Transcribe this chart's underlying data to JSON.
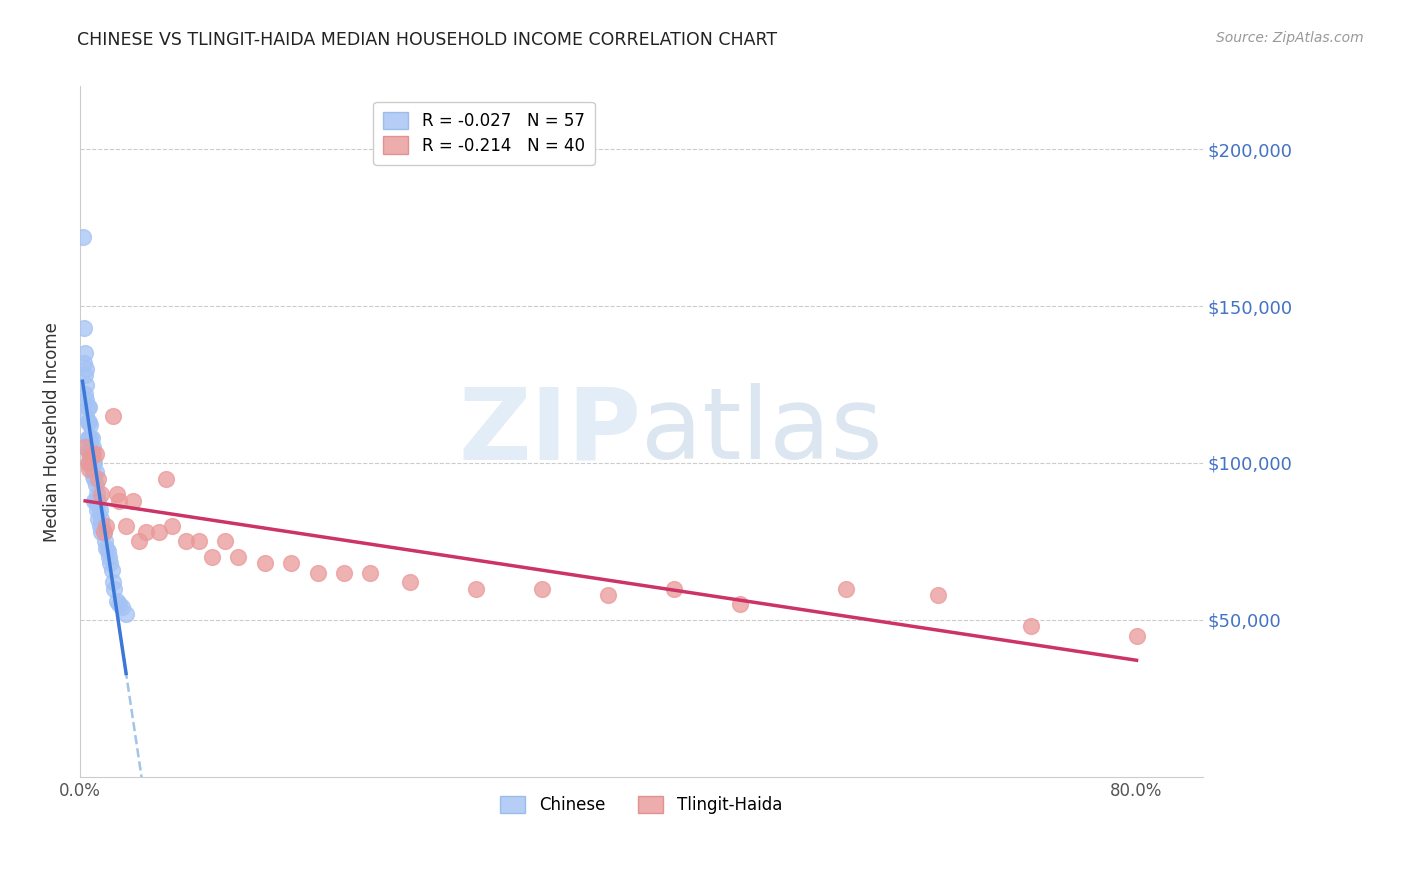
{
  "title": "CHINESE VS TLINGIT-HAIDA MEDIAN HOUSEHOLD INCOME CORRELATION CHART",
  "source": "Source: ZipAtlas.com",
  "ylabel": "Median Household Income",
  "ytick_labels": [
    "$50,000",
    "$100,000",
    "$150,000",
    "$200,000"
  ],
  "ytick_values": [
    50000,
    100000,
    150000,
    200000
  ],
  "ylim": [
    0,
    220000
  ],
  "xlim": [
    0.0,
    0.85
  ],
  "chinese_R": -0.027,
  "chinese_N": 57,
  "tlingit_R": -0.214,
  "tlingit_N": 40,
  "chinese_color": "#a4c2f4",
  "tlingit_color": "#ea9999",
  "chinese_line_color": "#3c78d8",
  "tlingit_line_color": "#cc3366",
  "chinese_dash_color": "#9fc5e8",
  "chinese_x": [
    0.002,
    0.003,
    0.003,
    0.004,
    0.004,
    0.004,
    0.005,
    0.005,
    0.005,
    0.005,
    0.006,
    0.006,
    0.006,
    0.006,
    0.007,
    0.007,
    0.007,
    0.007,
    0.007,
    0.008,
    0.008,
    0.008,
    0.008,
    0.009,
    0.009,
    0.009,
    0.01,
    0.01,
    0.01,
    0.011,
    0.011,
    0.011,
    0.012,
    0.012,
    0.012,
    0.013,
    0.013,
    0.014,
    0.014,
    0.015,
    0.015,
    0.016,
    0.016,
    0.017,
    0.018,
    0.019,
    0.02,
    0.021,
    0.022,
    0.023,
    0.024,
    0.025,
    0.026,
    0.028,
    0.03,
    0.032,
    0.035
  ],
  "chinese_y": [
    172000,
    143000,
    132000,
    135000,
    128000,
    122000,
    130000,
    125000,
    120000,
    115000,
    118000,
    113000,
    108000,
    104000,
    118000,
    113000,
    108000,
    103000,
    100000,
    112000,
    108000,
    104000,
    100000,
    108000,
    104000,
    98000,
    105000,
    100000,
    96000,
    100000,
    95000,
    88000,
    97000,
    93000,
    88000,
    90000,
    85000,
    88000,
    82000,
    85000,
    80000,
    82000,
    78000,
    80000,
    78000,
    75000,
    73000,
    72000,
    70000,
    68000,
    66000,
    62000,
    60000,
    56000,
    55000,
    54000,
    52000
  ],
  "tlingit_x": [
    0.004,
    0.006,
    0.007,
    0.008,
    0.01,
    0.012,
    0.014,
    0.016,
    0.018,
    0.02,
    0.025,
    0.028,
    0.03,
    0.035,
    0.04,
    0.045,
    0.05,
    0.06,
    0.065,
    0.07,
    0.08,
    0.09,
    0.1,
    0.11,
    0.12,
    0.14,
    0.16,
    0.18,
    0.2,
    0.22,
    0.25,
    0.3,
    0.35,
    0.4,
    0.45,
    0.5,
    0.58,
    0.65,
    0.72,
    0.8
  ],
  "tlingit_y": [
    105000,
    100000,
    98000,
    102000,
    103000,
    103000,
    95000,
    90000,
    78000,
    80000,
    115000,
    90000,
    88000,
    80000,
    88000,
    75000,
    78000,
    78000,
    95000,
    80000,
    75000,
    75000,
    70000,
    75000,
    70000,
    68000,
    68000,
    65000,
    65000,
    65000,
    62000,
    60000,
    60000,
    58000,
    60000,
    55000,
    60000,
    58000,
    48000,
    45000
  ]
}
